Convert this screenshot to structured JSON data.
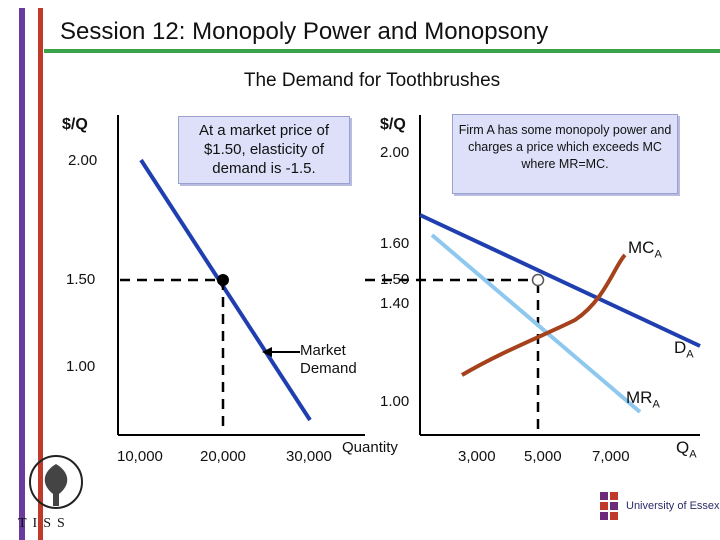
{
  "slide": {
    "title": "Session 12: Monopoly Power and Monopsony",
    "subtitle": "The Demand for Toothbrushes"
  },
  "left_panel": {
    "y_axis_label": "$/Q",
    "y_ticks": [
      "2.00",
      "1.50",
      "1.00"
    ],
    "x_ticks": [
      "10,000",
      "20,000",
      "30,000"
    ],
    "x_axis_label": "Quantity",
    "callout": "At a market price of $1.50, elasticity of demand is -1.5.",
    "curve_label": "Market Demand"
  },
  "right_panel": {
    "y_axis_label": "$/Q",
    "y_ticks": [
      "2.00",
      "1.60",
      "1.50",
      "1.40",
      "1.00"
    ],
    "x_ticks": [
      "3,000",
      "5,000",
      "7,000"
    ],
    "x_axis_label": "Q",
    "x_axis_sub": "A",
    "callout": "Firm A has some monopoly power and charges a price which exceeds MC where MR=MC.",
    "mc_label": "MC",
    "mc_sub": "A",
    "demand_label": "D",
    "demand_sub": "A",
    "mr_label": "MR",
    "mr_sub": "A"
  },
  "logos": {
    "left": "TISS",
    "right": "University of Essex"
  },
  "colors": {
    "demand": "#1f3fb0",
    "mr": "#8ec8ef",
    "mc": "#a5421c",
    "callout_bg": "#dde0f8",
    "title_rule": "#3aa34a"
  }
}
